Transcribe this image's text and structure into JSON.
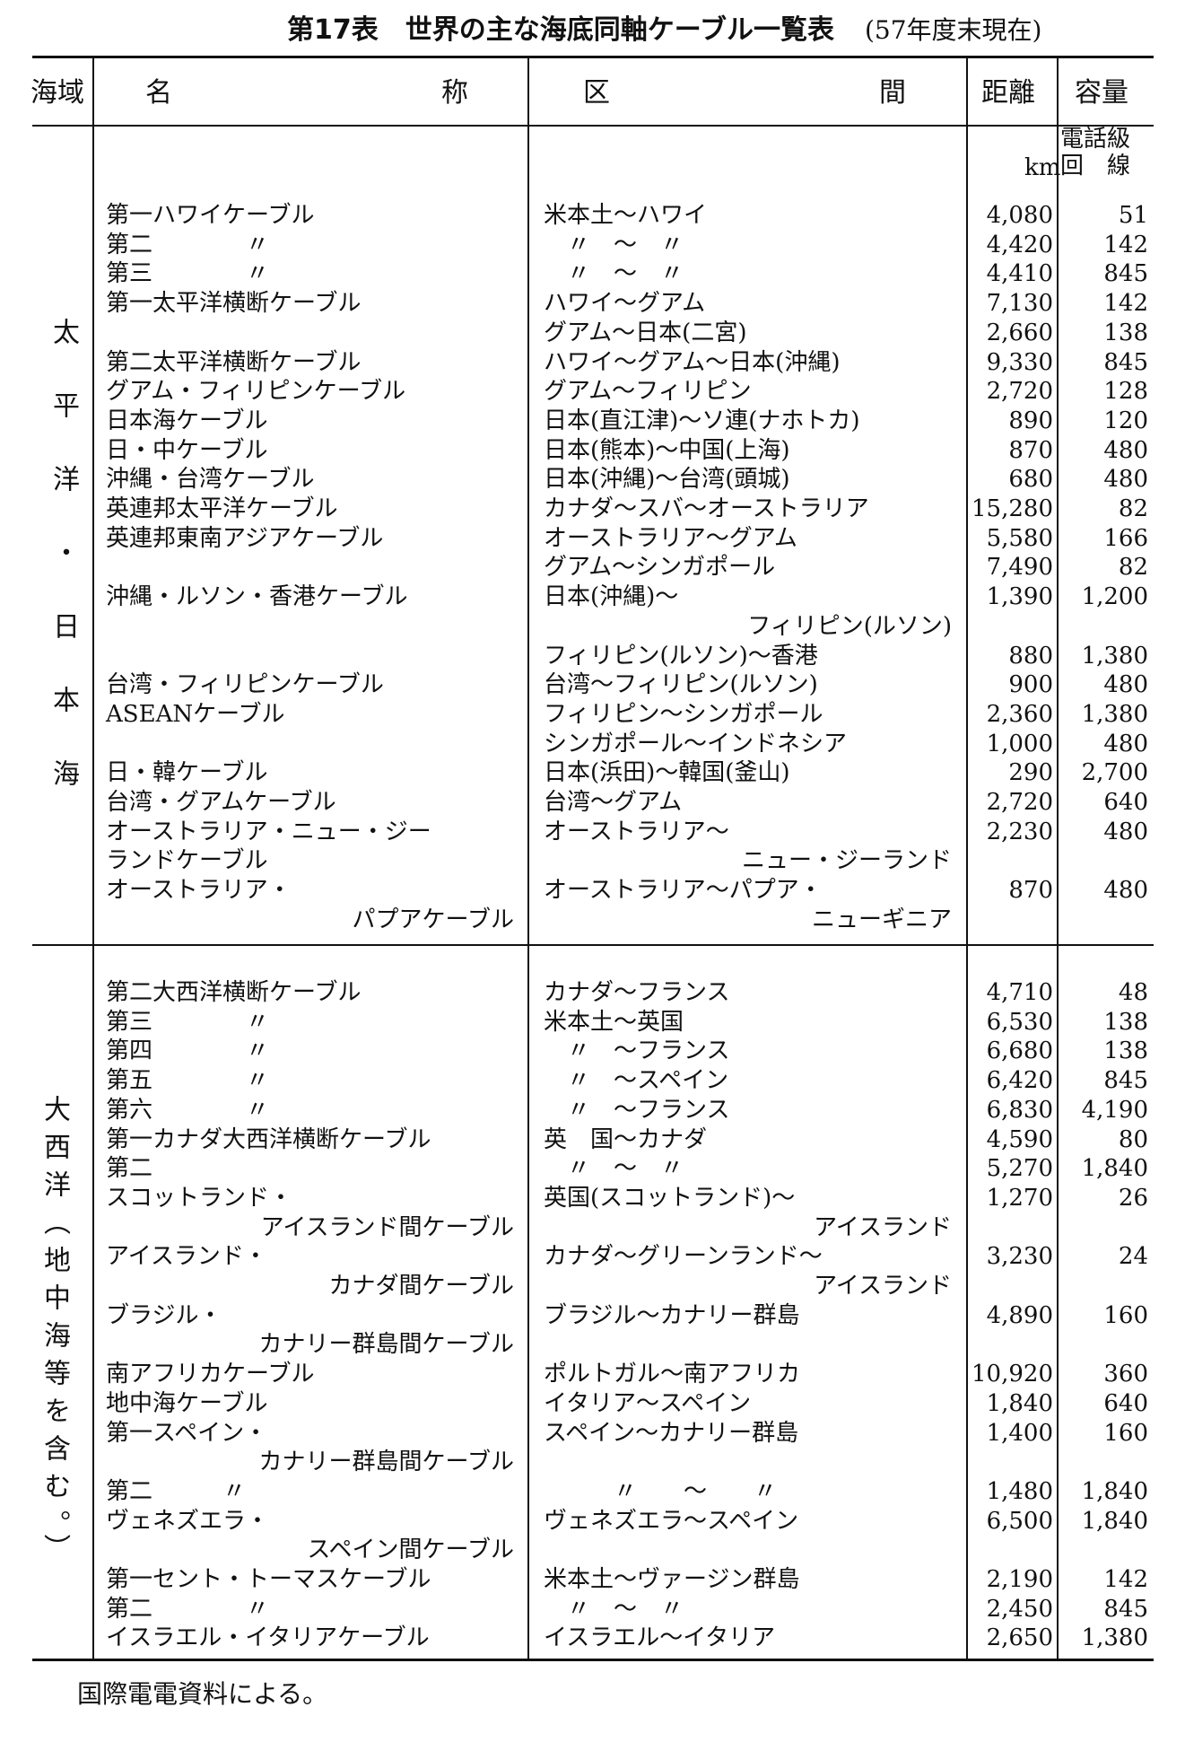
{
  "title": "第17表　世界の主な海底同軸ケーブル一覧表",
  "as_of": "(57年度末現在)",
  "headers": {
    "region": "海域",
    "name": [
      "名",
      "称"
    ],
    "route": [
      "区",
      "間"
    ],
    "distance": "距離",
    "capacity": "容量",
    "distance_unit": "km",
    "capacity_unit_line1": "電話級",
    "capacity_unit_line2": "回　線"
  },
  "sections": [
    {
      "region": "太平洋・日本海",
      "rows": [
        {
          "name": "第一ハワイケーブル",
          "route": "米本土〜ハワイ",
          "distance": "4,080",
          "capacity": "51"
        },
        {
          "name": "第二　　　　〃",
          "route": "　〃　〜　〃",
          "distance": "4,420",
          "capacity": "142"
        },
        {
          "name": "第三　　　　〃",
          "route": "　〃　〜　〃",
          "distance": "4,410",
          "capacity": "845"
        },
        {
          "name": "第一太平洋横断ケーブル",
          "route": "ハワイ〜グアム",
          "distance": "7,130",
          "capacity": "142"
        },
        {
          "name": "",
          "route": "グアム〜日本(二宮)",
          "distance": "2,660",
          "capacity": "138"
        },
        {
          "name": "第二太平洋横断ケーブル",
          "route": "ハワイ〜グアム〜日本(沖縄)",
          "distance": "9,330",
          "capacity": "845"
        },
        {
          "name": "グアム・フィリピンケーブル",
          "route": "グアム〜フィリピン",
          "distance": "2,720",
          "capacity": "128"
        },
        {
          "name": "日本海ケーブル",
          "route": "日本(直江津)〜ソ連(ナホトカ)",
          "distance": "890",
          "capacity": "120"
        },
        {
          "name": "日・中ケーブル",
          "route": "日本(熊本)〜中国(上海)",
          "distance": "870",
          "capacity": "480"
        },
        {
          "name": "沖縄・台湾ケーブル",
          "route": "日本(沖縄)〜台湾(頭城)",
          "distance": "680",
          "capacity": "480"
        },
        {
          "name": "英連邦太平洋ケーブル",
          "route": "カナダ〜スバ〜オーストラリア",
          "distance": "15,280",
          "capacity": "82"
        },
        {
          "name": "英連邦東南アジアケーブル",
          "route": "オーストラリア〜グアム",
          "distance": "5,580",
          "capacity": "166"
        },
        {
          "name": "",
          "route": "グアム〜シンガポール",
          "distance": "7,490",
          "capacity": "82"
        },
        {
          "name": "沖縄・ルソン・香港ケーブル",
          "route": "日本(沖縄)〜",
          "distance": "1,390",
          "capacity": "1,200"
        },
        {
          "name": "",
          "route": "フィリピン(ルソン)",
          "route_continuation": true,
          "distance": "",
          "capacity": ""
        },
        {
          "name": "",
          "route": "フィリピン(ルソン)〜香港",
          "distance": "880",
          "capacity": "1,380"
        },
        {
          "name": "台湾・フィリピンケーブル",
          "route": "台湾〜フィリピン(ルソン)",
          "distance": "900",
          "capacity": "480"
        },
        {
          "name": "ASEANケーブル",
          "route": "フィリピン〜シンガポール",
          "distance": "2,360",
          "capacity": "1,380"
        },
        {
          "name": "",
          "route": "シンガポール〜インドネシア",
          "distance": "1,000",
          "capacity": "480"
        },
        {
          "name": "日・韓ケーブル",
          "route": "日本(浜田)〜韓国(釜山)",
          "distance": "290",
          "capacity": "2,700"
        },
        {
          "name": "台湾・グアムケーブル",
          "route": "台湾〜グアム",
          "distance": "2,720",
          "capacity": "640"
        },
        {
          "name": "オーストラリア・ニュー・ジー",
          "route": "オーストラリア〜",
          "distance": "2,230",
          "capacity": "480"
        },
        {
          "name": "ランドケーブル",
          "route": "ニュー・ジーランド",
          "route_continuation": true,
          "distance": "",
          "capacity": ""
        },
        {
          "name": "オーストラリア・",
          "route": "オーストラリア〜パプア・",
          "distance": "870",
          "capacity": "480"
        },
        {
          "name": "パプアケーブル",
          "name_continuation": true,
          "route": "ニューギニア",
          "route_continuation": true,
          "distance": "",
          "capacity": ""
        }
      ]
    },
    {
      "region": "大西洋（地中海等を含む。）",
      "rows": [
        {
          "name": "第二大西洋横断ケーブル",
          "route": "カナダ〜フランス",
          "distance": "4,710",
          "capacity": "48"
        },
        {
          "name": "第三　　　　〃",
          "route": "米本土〜英国",
          "distance": "6,530",
          "capacity": "138"
        },
        {
          "name": "第四　　　　〃",
          "route": "　〃　〜フランス",
          "distance": "6,680",
          "capacity": "138"
        },
        {
          "name": "第五　　　　〃",
          "route": "　〃　〜スペイン",
          "distance": "6,420",
          "capacity": "845"
        },
        {
          "name": "第六　　　　〃",
          "route": "　〃　〜フランス",
          "distance": "6,830",
          "capacity": "4,190"
        },
        {
          "name": "第一カナダ大西洋横断ケーブル",
          "route": "英　国〜カナダ",
          "distance": "4,590",
          "capacity": "80"
        },
        {
          "name": "第二",
          "route": "　〃　〜　〃",
          "distance": "5,270",
          "capacity": "1,840"
        },
        {
          "name": "スコットランド・",
          "route": "英国(スコットランド)〜",
          "distance": "1,270",
          "capacity": "26"
        },
        {
          "name": "アイスランド間ケーブル",
          "name_continuation": true,
          "route": "アイスランド",
          "route_continuation": true,
          "distance": "",
          "capacity": ""
        },
        {
          "name": "アイスランド・",
          "route": "カナダ〜グリーンランド〜",
          "distance": "3,230",
          "capacity": "24"
        },
        {
          "name": "カナダ間ケーブル",
          "name_continuation": true,
          "route": "アイスランド",
          "route_continuation": true,
          "distance": "",
          "capacity": ""
        },
        {
          "name": "ブラジル・",
          "route": "ブラジル〜カナリー群島",
          "distance": "4,890",
          "capacity": "160"
        },
        {
          "name": "カナリー群島間ケーブル",
          "name_continuation": true,
          "route": "",
          "distance": "",
          "capacity": ""
        },
        {
          "name": "南アフリカケーブル",
          "route": "ポルトガル〜南アフリカ",
          "distance": "10,920",
          "capacity": "360"
        },
        {
          "name": "地中海ケーブル",
          "route": "イタリア〜スペイン",
          "distance": "1,840",
          "capacity": "640"
        },
        {
          "name": "第一スペイン・",
          "route": "スペイン〜カナリー群島",
          "distance": "1,400",
          "capacity": "160"
        },
        {
          "name": "カナリー群島間ケーブル",
          "name_continuation": true,
          "route": "",
          "distance": "",
          "capacity": ""
        },
        {
          "name": "第二　　　〃",
          "route": "　　　〃　　〜　　〃",
          "distance": "1,480",
          "capacity": "1,840"
        },
        {
          "name": "ヴェネズエラ・",
          "route": "ヴェネズエラ〜スペイン",
          "distance": "6,500",
          "capacity": "1,840"
        },
        {
          "name": "スペイン間ケーブル",
          "name_continuation": true,
          "route": "",
          "distance": "",
          "capacity": ""
        },
        {
          "name": "第一セント・トーマスケーブル",
          "route": "米本土〜ヴァージン群島",
          "distance": "2,190",
          "capacity": "142"
        },
        {
          "name": "第二　　　　〃",
          "route": "　〃　〜　〃",
          "distance": "2,450",
          "capacity": "845"
        },
        {
          "name": "イスラエル・イタリアケーブル",
          "route": "イスラエル〜イタリア",
          "distance": "2,650",
          "capacity": "1,380"
        }
      ]
    }
  ],
  "footer": "国際電電資料による。"
}
